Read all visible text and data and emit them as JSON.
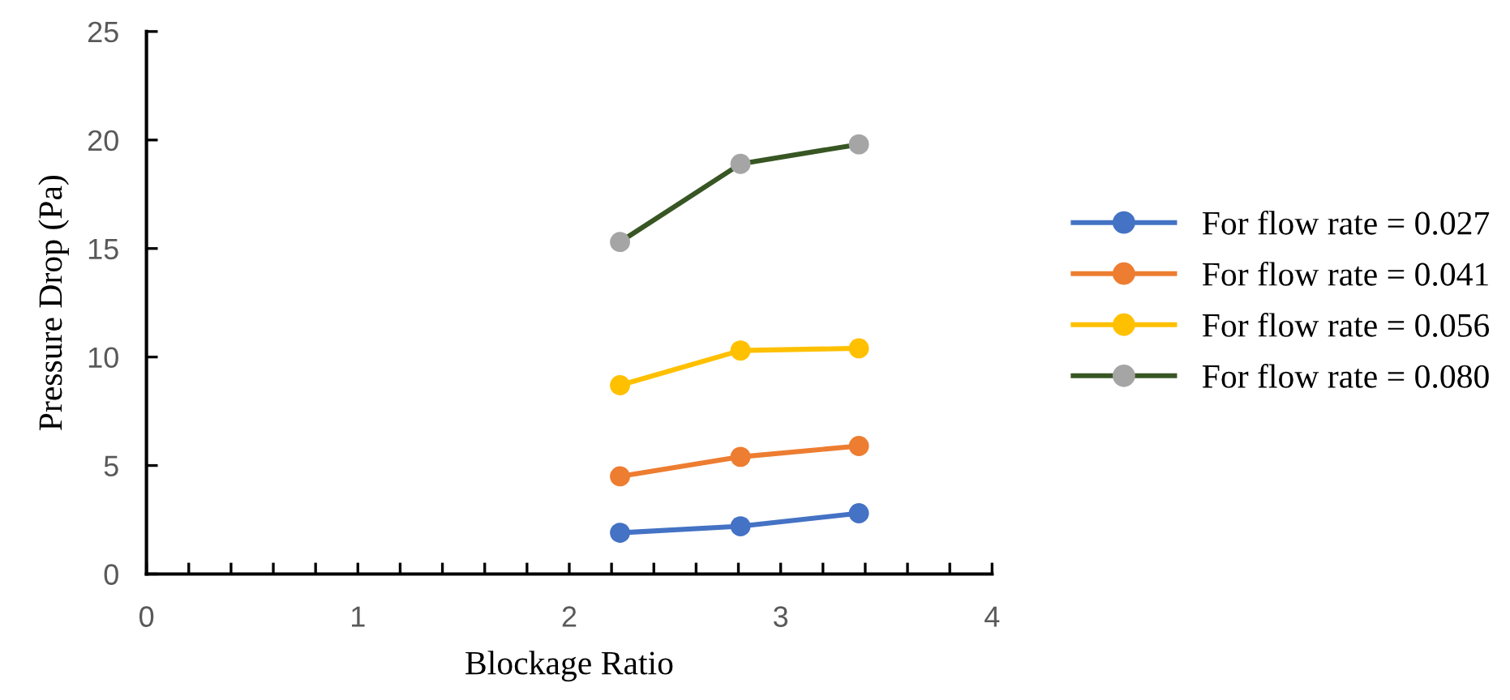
{
  "chart_data": {
    "type": "line",
    "xlabel": "Blockage Ratio",
    "ylabel": "Pressure Drop (Pa)",
    "x": [
      2.24,
      2.81,
      3.37
    ],
    "series": [
      {
        "name": "For flow rate = 0.027",
        "color": "#4472c4",
        "values": [
          1.9,
          2.2,
          2.8
        ]
      },
      {
        "name": "For flow rate = 0.041",
        "color": "#ed7d31",
        "values": [
          4.5,
          5.4,
          5.9
        ]
      },
      {
        "name": "For flow rate = 0.056",
        "color": "#ffc000",
        "values": [
          8.7,
          10.3,
          10.4
        ]
      },
      {
        "name": "For flow rate = 0.080",
        "color": "#375623",
        "colors": [
          "#a5a5a5",
          "#a5a5a5",
          "#a5a5a5"
        ],
        "values": [
          15.3,
          18.9,
          19.8
        ]
      }
    ],
    "xlim": [
      0,
      4
    ],
    "xticks": [
      0,
      1,
      2,
      3,
      4
    ],
    "ylim": [
      0,
      25
    ],
    "yticks": [
      0,
      5,
      10,
      15,
      20,
      25
    ],
    "grid": false,
    "legend": "right",
    "marker": "circle",
    "line_style": "solid"
  }
}
